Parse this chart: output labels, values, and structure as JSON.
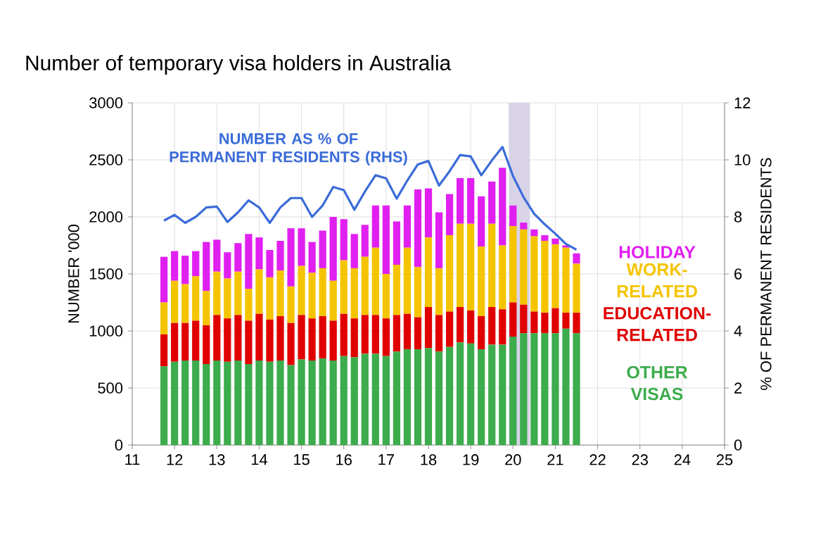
{
  "chart_data": {
    "type": "bar",
    "title": "Number of temporary visa holders in Australia",
    "ylabel": "NUMBER '000",
    "y2label": "% OF PERMANENT RESIDENTS",
    "x": [
      11.75,
      12,
      12.25,
      12.5,
      12.75,
      13,
      13.25,
      13.5,
      13.75,
      14,
      14.25,
      14.5,
      14.75,
      15,
      15.25,
      15.5,
      15.75,
      16,
      16.25,
      16.5,
      16.75,
      17,
      17.25,
      17.5,
      17.75,
      18,
      18.25,
      18.5,
      18.75,
      19,
      19.25,
      19.5,
      19.75,
      20,
      20.25,
      20.5,
      20.75,
      21,
      21.25,
      21.5
    ],
    "stacked": true,
    "grid": true,
    "xlim": [
      11,
      25
    ],
    "xticks": [
      11,
      12,
      13,
      14,
      15,
      16,
      17,
      18,
      19,
      20,
      21,
      22,
      23,
      24,
      25
    ],
    "ylim": [
      0,
      3000
    ],
    "yticks": [
      0,
      500,
      1000,
      1500,
      2000,
      2500,
      3000
    ],
    "y2lim": [
      0,
      12
    ],
    "y2ticks": [
      0,
      2,
      4,
      6,
      8,
      10,
      12
    ],
    "bands": [
      {
        "axis": "x",
        "from": 19.9,
        "to": 20.4,
        "color": "#d9d3e8"
      }
    ],
    "series": [
      {
        "name": "OTHER VISAS",
        "color": "#3cac4c",
        "values": [
          690,
          730,
          740,
          740,
          710,
          740,
          730,
          740,
          710,
          740,
          730,
          740,
          700,
          750,
          740,
          760,
          740,
          780,
          770,
          800,
          800,
          780,
          820,
          840,
          840,
          850,
          820,
          860,
          900,
          890,
          840,
          880,
          880,
          950,
          980,
          980,
          980,
          980,
          1020,
          980
        ]
      },
      {
        "name": "EDUCATION-RELATED",
        "color": "#e00000",
        "values": [
          280,
          340,
          330,
          350,
          340,
          400,
          380,
          400,
          380,
          410,
          370,
          390,
          370,
          390,
          370,
          370,
          350,
          370,
          340,
          340,
          340,
          330,
          320,
          310,
          280,
          360,
          320,
          310,
          310,
          290,
          290,
          330,
          310,
          300,
          250,
          190,
          180,
          220,
          140,
          180
        ]
      },
      {
        "name": "WORK-RELATED",
        "color": "#f5c400",
        "values": [
          280,
          370,
          340,
          390,
          300,
          380,
          350,
          380,
          280,
          390,
          370,
          400,
          320,
          430,
          400,
          420,
          350,
          470,
          440,
          510,
          590,
          390,
          440,
          580,
          440,
          610,
          410,
          670,
          730,
          760,
          610,
          730,
          560,
          670,
          660,
          660,
          630,
          560,
          570,
          430
        ]
      },
      {
        "name": "HOLIDAY",
        "color": "#e020f0",
        "values": [
          400,
          260,
          250,
          220,
          430,
          280,
          230,
          250,
          480,
          280,
          240,
          260,
          510,
          330,
          270,
          330,
          560,
          360,
          300,
          280,
          370,
          600,
          380,
          370,
          680,
          430,
          490,
          360,
          400,
          400,
          440,
          370,
          680,
          180,
          60,
          60,
          50,
          50,
          20,
          90
        ]
      },
      {
        "name": "NUMBER AS % OF PERMANENT RESIDENTS (RHS)",
        "type": "line",
        "axis": "y2",
        "color": "#3a6bd8",
        "values": [
          7.87,
          8.07,
          7.79,
          8.0,
          8.33,
          8.36,
          7.82,
          8.16,
          8.58,
          8.33,
          7.79,
          8.33,
          8.66,
          8.66,
          8.0,
          8.4,
          9.05,
          8.94,
          8.25,
          8.89,
          9.46,
          9.35,
          8.64,
          9.27,
          9.84,
          9.96,
          9.1,
          9.6,
          10.17,
          10.12,
          9.46,
          9.98,
          10.45,
          9.43,
          8.69,
          8.11,
          7.74,
          7.41,
          7.05,
          6.85
        ]
      }
    ]
  }
}
